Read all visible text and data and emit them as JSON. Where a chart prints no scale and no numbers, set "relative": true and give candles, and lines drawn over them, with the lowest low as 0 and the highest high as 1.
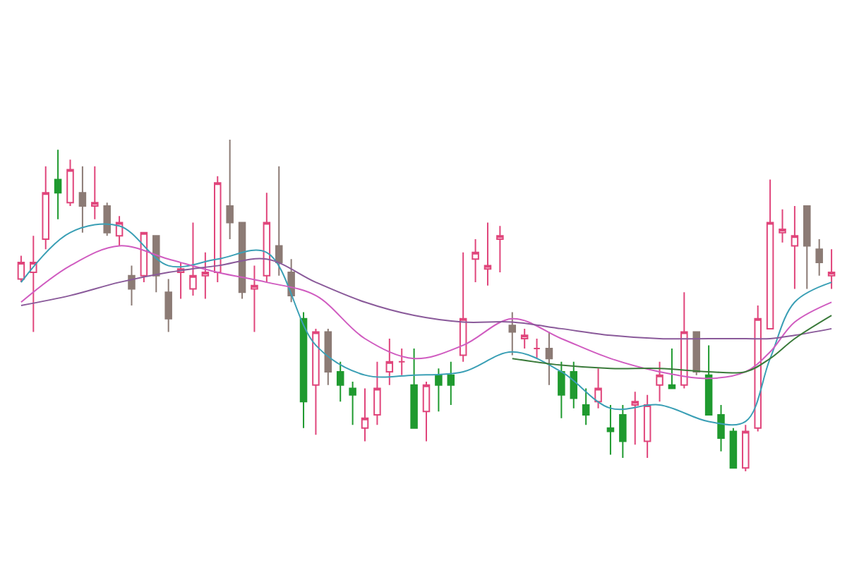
{
  "chart_data": {
    "type": "candlestick",
    "relative": true,
    "categories": [
      null,
      null,
      null,
      null,
      null,
      null,
      null,
      null,
      null,
      null,
      null,
      null,
      null,
      null,
      null,
      null,
      null,
      null,
      null,
      null,
      null,
      null,
      null,
      null,
      null,
      null,
      null,
      null,
      null,
      null,
      null,
      null,
      null,
      null,
      null,
      null,
      null,
      null,
      null,
      null,
      null,
      null,
      null,
      null,
      null,
      null,
      null,
      null,
      null,
      null,
      null,
      null,
      null,
      null,
      null,
      null,
      null,
      null,
      null,
      null,
      null,
      null,
      null,
      null,
      null,
      null,
      null
    ],
    "ohlc": [
      [
        0.58,
        0.65,
        0.57,
        0.63
      ],
      [
        0.6,
        0.71,
        0.42,
        0.63
      ],
      [
        0.7,
        0.92,
        0.67,
        0.84
      ],
      [
        0.88,
        0.97,
        0.76,
        0.84
      ],
      [
        0.81,
        0.94,
        0.8,
        0.91
      ],
      [
        0.84,
        0.92,
        0.72,
        0.8
      ],
      [
        0.8,
        0.92,
        0.76,
        0.81
      ],
      [
        0.8,
        0.81,
        0.71,
        0.72
      ],
      [
        0.71,
        0.77,
        0.68,
        0.75
      ],
      [
        0.59,
        0.62,
        0.5,
        0.55
      ],
      [
        0.59,
        0.72,
        0.57,
        0.72
      ],
      [
        0.71,
        0.71,
        0.54,
        0.59
      ],
      [
        0.54,
        0.58,
        0.42,
        0.46
      ],
      [
        0.6,
        0.63,
        0.52,
        0.61
      ],
      [
        0.55,
        0.75,
        0.53,
        0.59
      ],
      [
        0.59,
        0.66,
        0.52,
        0.6
      ],
      [
        0.6,
        0.89,
        0.57,
        0.87
      ],
      [
        0.8,
        1.0,
        0.7,
        0.75
      ],
      [
        0.75,
        0.75,
        0.52,
        0.54
      ],
      [
        0.55,
        0.62,
        0.42,
        0.56
      ],
      [
        0.59,
        0.84,
        0.57,
        0.75
      ],
      [
        0.68,
        0.92,
        0.59,
        0.63
      ],
      [
        0.6,
        0.64,
        0.51,
        0.53
      ],
      [
        0.46,
        0.48,
        0.13,
        0.21
      ],
      [
        0.26,
        0.43,
        0.11,
        0.42
      ],
      [
        0.42,
        0.43,
        0.26,
        0.3
      ],
      [
        0.3,
        0.33,
        0.21,
        0.26
      ],
      [
        0.25,
        0.27,
        0.14,
        0.23
      ],
      [
        0.13,
        0.25,
        0.09,
        0.16
      ],
      [
        0.17,
        0.33,
        0.14,
        0.25
      ],
      [
        0.3,
        0.4,
        0.26,
        0.33
      ],
      [
        0.33,
        0.37,
        0.29,
        0.33
      ],
      [
        0.26,
        0.37,
        0.13,
        0.13
      ],
      [
        0.18,
        0.27,
        0.09,
        0.26
      ],
      [
        0.29,
        0.31,
        0.18,
        0.26
      ],
      [
        0.29,
        0.33,
        0.2,
        0.26
      ],
      [
        0.35,
        0.66,
        0.33,
        0.46
      ],
      [
        0.64,
        0.7,
        0.57,
        0.66
      ],
      [
        0.61,
        0.75,
        0.56,
        0.62
      ],
      [
        0.7,
        0.74,
        0.6,
        0.71
      ],
      [
        0.44,
        0.48,
        0.35,
        0.42
      ],
      [
        0.4,
        0.43,
        0.37,
        0.41
      ],
      [
        0.37,
        0.4,
        0.34,
        0.37
      ],
      [
        0.37,
        0.42,
        0.26,
        0.34
      ],
      [
        0.3,
        0.33,
        0.16,
        0.23
      ],
      [
        0.3,
        0.33,
        0.19,
        0.22
      ],
      [
        0.2,
        0.25,
        0.14,
        0.17
      ],
      [
        0.21,
        0.31,
        0.19,
        0.25
      ],
      [
        0.13,
        0.2,
        0.05,
        0.12
      ],
      [
        0.17,
        0.2,
        0.04,
        0.09
      ],
      [
        0.2,
        0.24,
        0.08,
        0.21
      ],
      [
        0.09,
        0.23,
        0.04,
        0.2
      ],
      [
        0.26,
        0.33,
        0.21,
        0.29
      ],
      [
        0.26,
        0.37,
        0.25,
        0.25
      ],
      [
        0.26,
        0.54,
        0.25,
        0.42
      ],
      [
        0.42,
        0.42,
        0.29,
        0.3
      ],
      [
        0.29,
        0.38,
        0.17,
        0.17
      ],
      [
        0.17,
        0.2,
        0.06,
        0.1
      ],
      [
        0.12,
        0.13,
        0.01,
        0.01
      ],
      [
        0.01,
        0.14,
        0.0,
        0.12
      ],
      [
        0.13,
        0.5,
        0.12,
        0.46
      ],
      [
        0.43,
        0.88,
        0.43,
        0.75
      ],
      [
        0.72,
        0.79,
        0.69,
        0.73
      ],
      [
        0.68,
        0.8,
        0.55,
        0.71
      ],
      [
        0.8,
        0.8,
        0.55,
        0.68
      ],
      [
        0.67,
        0.7,
        0.59,
        0.63
      ],
      [
        0.59,
        0.67,
        0.55,
        0.6
      ]
    ],
    "colors": [
      "#e0457b",
      "#e0457b",
      "#e0457b",
      "#1f9a2f",
      "#e0457b",
      "#8c7b75",
      "#e0457b",
      "#8c7b75",
      "#e0457b",
      "#8c7b75",
      "#e0457b",
      "#8c7b75",
      "#8c7b75",
      "#e0457b",
      "#e0457b",
      "#e0457b",
      "#e0457b",
      "#8c7b75",
      "#8c7b75",
      "#e0457b",
      "#e0457b",
      "#8c7b75",
      "#8c7b75",
      "#1f9a2f",
      "#e0457b",
      "#8c7b75",
      "#1f9a2f",
      "#1f9a2f",
      "#e0457b",
      "#e0457b",
      "#e0457b",
      "#e0457b",
      "#1f9a2f",
      "#e0457b",
      "#1f9a2f",
      "#1f9a2f",
      "#e0457b",
      "#e0457b",
      "#e0457b",
      "#e0457b",
      "#8c7b75",
      "#e0457b",
      "#e0457b",
      "#8c7b75",
      "#1f9a2f",
      "#1f9a2f",
      "#1f9a2f",
      "#e0457b",
      "#1f9a2f",
      "#1f9a2f",
      "#e0457b",
      "#e0457b",
      "#e0457b",
      "#1f9a2f",
      "#e0457b",
      "#8c7b75",
      "#1f9a2f",
      "#1f9a2f",
      "#1f9a2f",
      "#e0457b",
      "#e0457b",
      "#e0457b",
      "#e0457b",
      "#e0457b",
      "#8c7b75",
      "#8c7b75",
      "#e0457b"
    ],
    "series": [
      {
        "type": "line",
        "color": "#3a9fb5",
        "values": [
          0.57,
          null,
          null,
          null,
          0.72,
          null,
          null,
          null,
          0.74,
          null,
          null,
          null,
          0.62,
          null,
          null,
          null,
          0.64,
          null,
          null,
          null,
          0.66,
          null,
          null,
          null,
          0.38,
          null,
          null,
          null,
          0.29,
          null,
          null,
          null,
          0.29,
          null,
          null,
          null,
          0.3,
          null,
          null,
          null,
          0.36,
          null,
          null,
          null,
          0.3,
          null,
          null,
          null,
          0.19,
          null,
          null,
          null,
          0.2,
          null,
          null,
          null,
          0.15,
          null,
          null,
          0.15,
          null,
          0.34,
          null,
          0.51,
          null,
          null,
          0.57
        ]
      },
      {
        "type": "line",
        "color": "#d05cc0",
        "values": [
          0.51,
          null,
          null,
          null,
          0.62,
          null,
          null,
          null,
          0.68,
          null,
          null,
          null,
          0.64,
          null,
          null,
          null,
          0.6,
          null,
          null,
          null,
          0.57,
          null,
          null,
          null,
          0.53,
          null,
          null,
          null,
          0.4,
          null,
          null,
          null,
          0.34,
          null,
          null,
          null,
          0.38,
          null,
          null,
          null,
          0.46,
          null,
          null,
          null,
          0.4,
          null,
          null,
          null,
          0.34,
          null,
          null,
          null,
          0.3,
          null,
          null,
          null,
          0.28,
          null,
          null,
          0.3,
          null,
          0.36,
          null,
          0.45,
          null,
          null,
          0.51
        ]
      },
      {
        "type": "line",
        "color": "#8a5a9a",
        "values": [
          0.5,
          null,
          null,
          null,
          0.53,
          null,
          null,
          null,
          0.57,
          null,
          null,
          null,
          0.6,
          null,
          null,
          null,
          0.62,
          null,
          null,
          null,
          0.64,
          null,
          null,
          null,
          0.57,
          null,
          null,
          null,
          0.51,
          null,
          null,
          null,
          0.47,
          null,
          null,
          null,
          0.45,
          null,
          null,
          null,
          0.45,
          null,
          null,
          null,
          0.43,
          null,
          null,
          null,
          0.41,
          null,
          null,
          null,
          0.4,
          null,
          null,
          null,
          0.4,
          null,
          null,
          0.4,
          null,
          0.4,
          null,
          0.41,
          null,
          null,
          0.43
        ]
      },
      {
        "type": "line",
        "color": "#3a7a3a",
        "values": [
          null,
          null,
          null,
          null,
          null,
          null,
          null,
          null,
          null,
          null,
          null,
          null,
          null,
          null,
          null,
          null,
          null,
          null,
          null,
          null,
          null,
          null,
          null,
          null,
          null,
          null,
          null,
          null,
          null,
          null,
          null,
          null,
          null,
          null,
          null,
          null,
          null,
          null,
          null,
          null,
          0.34,
          null,
          null,
          null,
          0.32,
          null,
          null,
          null,
          0.31,
          null,
          null,
          null,
          0.31,
          null,
          null,
          null,
          0.3,
          null,
          null,
          0.3,
          null,
          0.34,
          null,
          0.4,
          null,
          null,
          0.47
        ]
      }
    ]
  }
}
